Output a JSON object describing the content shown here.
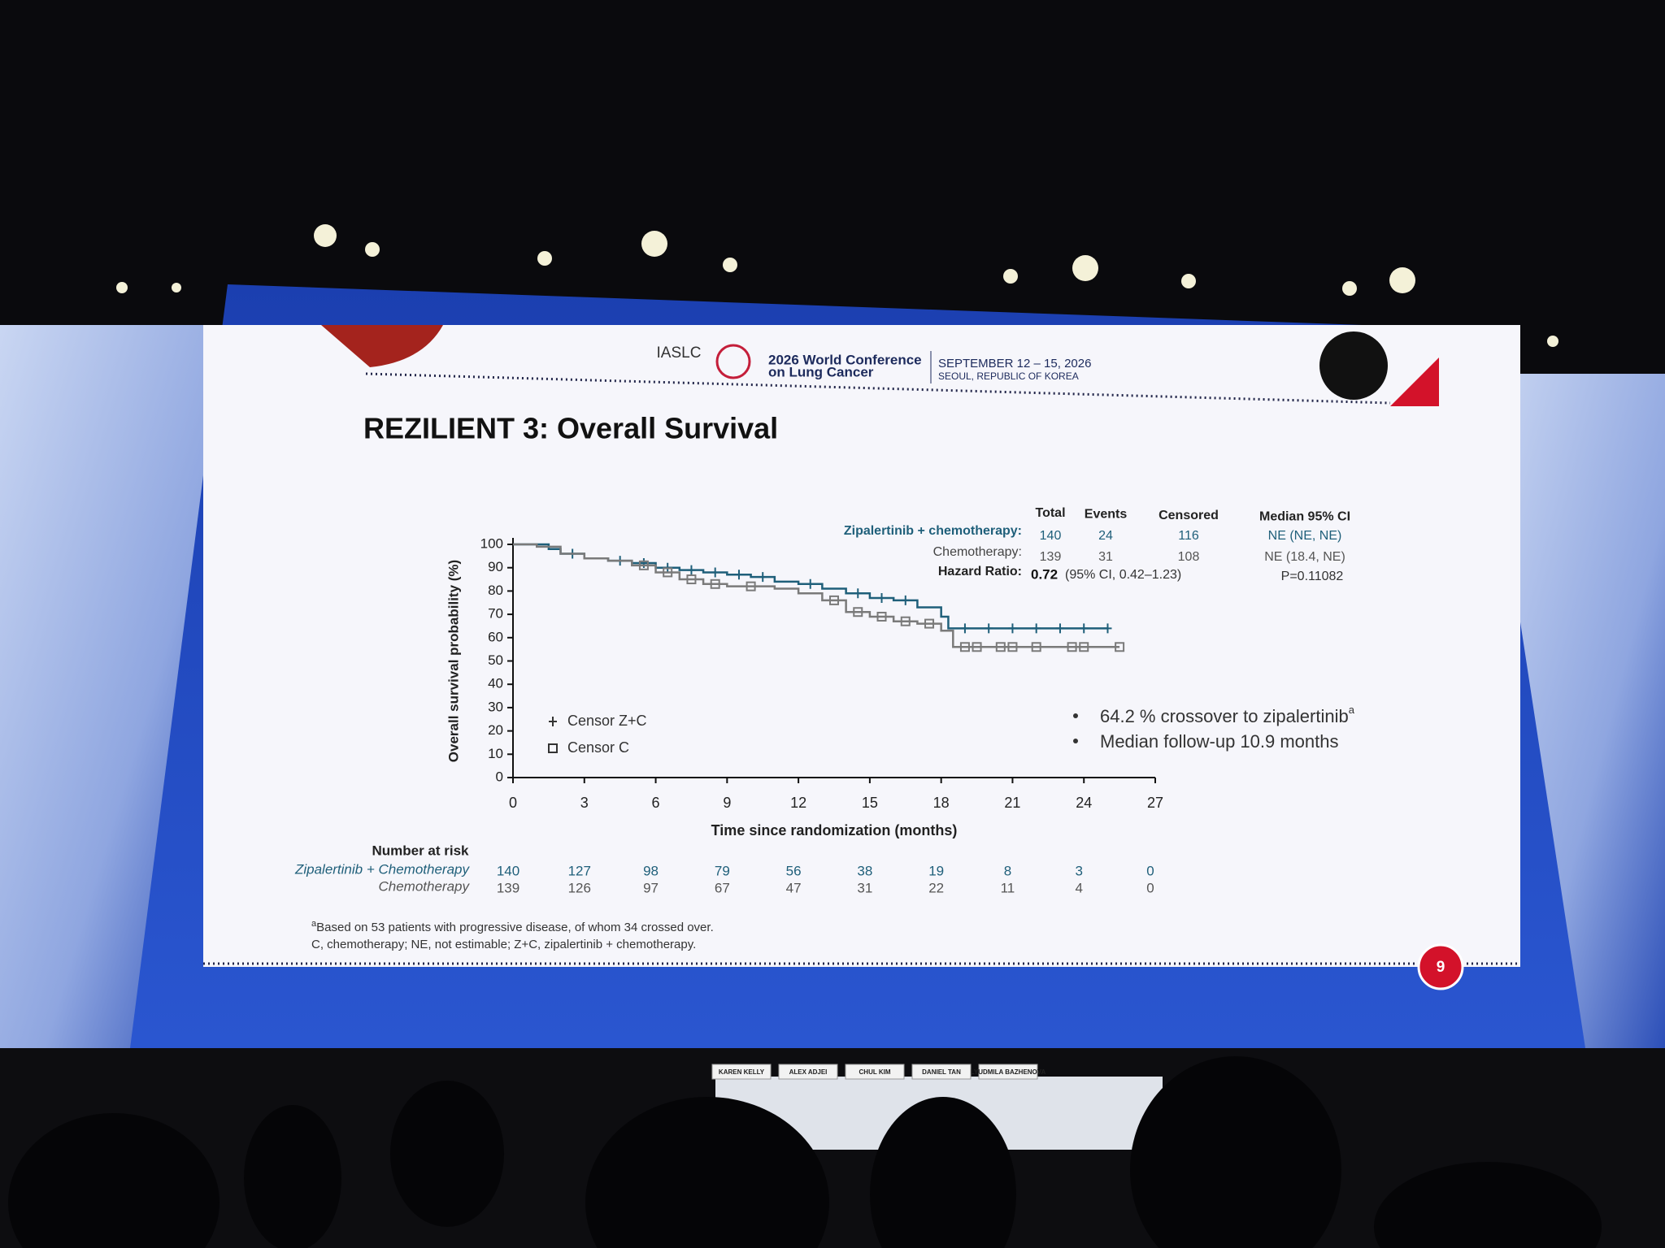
{
  "header": {
    "society": "IASLC",
    "conference_line1": "2026 World Conference",
    "conference_line2": "on Lung Cancer",
    "dates": "SEPTEMBER 12 – 15, 2026",
    "location": "SEOUL, REPUBLIC OF KOREA"
  },
  "chart_data": {
    "type": "line",
    "step": true,
    "title": "REZILIENT 3: Overall Survival",
    "x_label": "Time since randomization (months)",
    "y_label": "Overall survival probability (%)",
    "xlim": [
      0,
      27
    ],
    "xticks": [
      0,
      3,
      6,
      9,
      12,
      15,
      18,
      21,
      24,
      27
    ],
    "ylim": [
      0,
      100
    ],
    "yticks": [
      0,
      10,
      20,
      30,
      40,
      50,
      60,
      70,
      80,
      90,
      100
    ],
    "grid": false,
    "legend_position": "lower left",
    "series": [
      {
        "name": "Censor Z+C",
        "marker": "plus",
        "color": "#1f5f7a",
        "x": [
          0,
          1.5,
          2,
          3,
          4,
          5,
          6,
          7,
          8,
          9,
          10,
          11,
          12,
          13,
          14,
          15,
          16,
          17,
          18,
          18.3,
          25
        ],
        "values": [
          100,
          98,
          96,
          94,
          93,
          92,
          90,
          89,
          88,
          87,
          86,
          84,
          83,
          81,
          79,
          77,
          76,
          73,
          69,
          64,
          64
        ],
        "censor_x": [
          2.5,
          4.5,
          5.5,
          6.5,
          7.5,
          8.5,
          9.5,
          10.5,
          12.5,
          14.5,
          15.5,
          16.5,
          19,
          20,
          21,
          22,
          23,
          24,
          25
        ],
        "censor_values": [
          96,
          93,
          92,
          90,
          89,
          88,
          87,
          86,
          83,
          79,
          77,
          76,
          64,
          64,
          64,
          64,
          64,
          64,
          64
        ]
      },
      {
        "name": "Censor C",
        "marker": "square",
        "color": "#7a7a7a",
        "x": [
          0,
          1,
          2,
          3,
          4,
          5,
          6,
          7,
          8,
          9,
          11,
          12,
          13,
          14,
          15,
          16,
          17,
          18,
          18.5,
          25.5
        ],
        "values": [
          100,
          99,
          96,
          94,
          93,
          91,
          88,
          85,
          83,
          82,
          81,
          79,
          76,
          71,
          69,
          67,
          66,
          63,
          56,
          56
        ],
        "censor_x": [
          5.5,
          6.5,
          7.5,
          8.5,
          10,
          13.5,
          14.5,
          15.5,
          16.5,
          17.5,
          19,
          19.5,
          20.5,
          21,
          22,
          23.5,
          24,
          25.5
        ],
        "censor_values": [
          91,
          88,
          85,
          83,
          82,
          76,
          71,
          69,
          67,
          66,
          56,
          56,
          56,
          56,
          56,
          56,
          56,
          56
        ]
      }
    ]
  },
  "stats_table": {
    "columns": [
      "Total",
      "Events",
      "Censored",
      "Median 95% CI"
    ],
    "rows": [
      {
        "label": "Zipalertinib + chemotherapy:",
        "total": 140,
        "events": 24,
        "censored": 116,
        "median": "NE (NE, NE)"
      },
      {
        "label": "Chemotherapy:",
        "total": 139,
        "events": 31,
        "censored": 108,
        "median": "NE (18.4, NE)"
      }
    ],
    "hazard_label": "Hazard Ratio:",
    "hazard_ratio": 0.72,
    "hazard_ci": "(95% CI, 0.42–1.23)",
    "p_value": "P=0.11082"
  },
  "bullets": [
    {
      "text": "64.2 % crossover to zipalertinib",
      "sup": "a"
    },
    {
      "text": "Median follow-up 10.9 months"
    }
  ],
  "risk_table": {
    "title": "Number at risk",
    "rows": [
      {
        "name": "Zipalertinib + Chemotherapy",
        "values": [
          140,
          127,
          98,
          79,
          56,
          38,
          19,
          8,
          3,
          0
        ]
      },
      {
        "name": "Chemotherapy",
        "values": [
          139,
          126,
          97,
          67,
          47,
          31,
          22,
          11,
          4,
          0
        ]
      }
    ]
  },
  "footnotes": [
    {
      "sup": "a",
      "text": "Based on 53 patients with progressive disease, of whom 34 crossed over."
    },
    {
      "text": "C, chemotherapy; NE, not estimable; Z+C, zipalertinib + chemotherapy."
    }
  ],
  "page_number": "9",
  "panel": [
    "KAREN KELLY",
    "ALEX ADJEI",
    "CHUL KIM",
    "DANIEL TAN",
    "LYUDMILA BAZHENOVA"
  ]
}
